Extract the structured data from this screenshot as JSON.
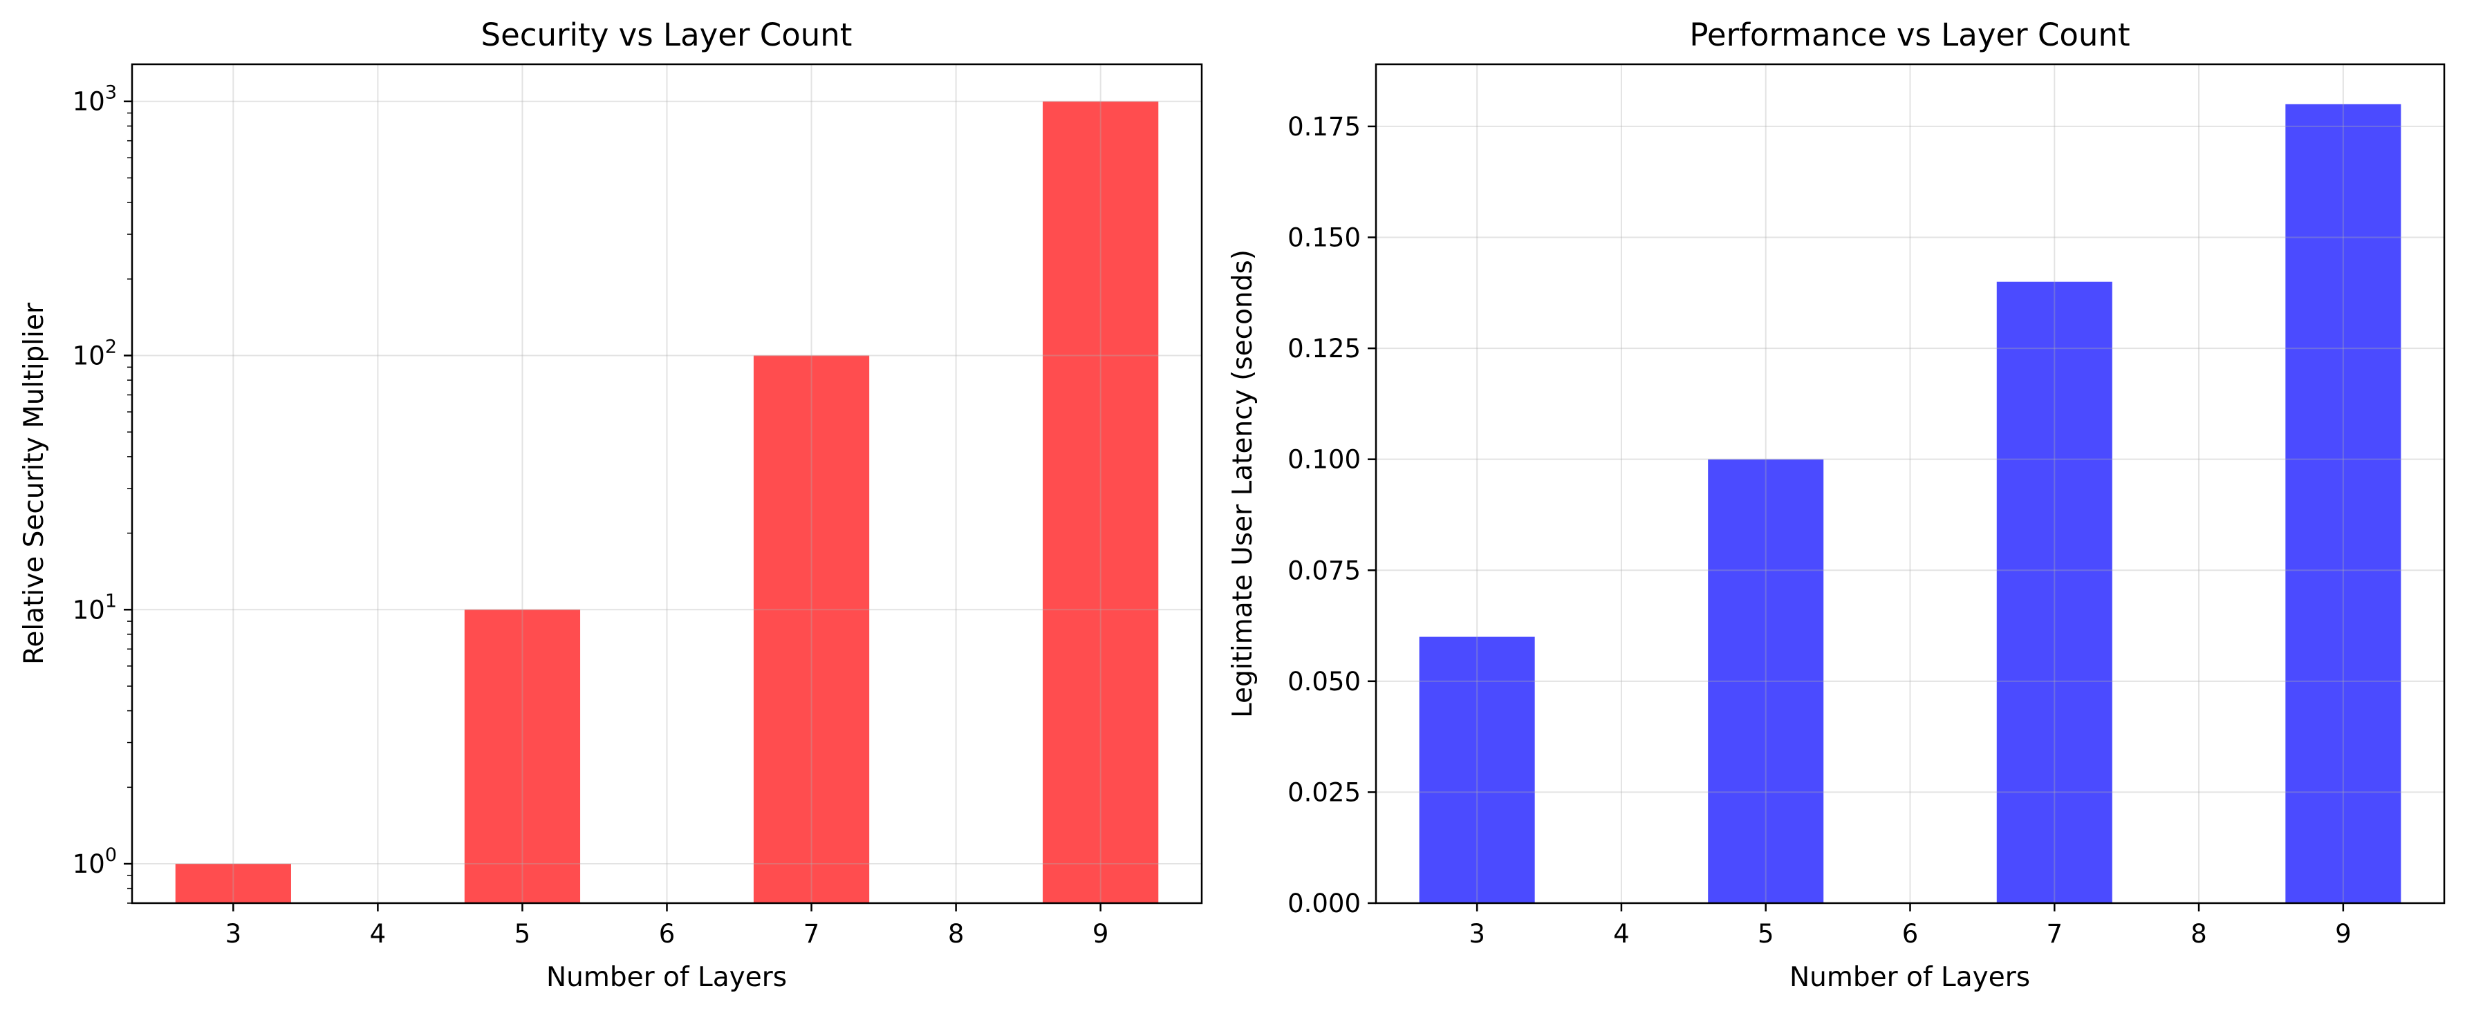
{
  "chart_data": [
    {
      "type": "bar",
      "title": "Security vs Layer Count",
      "xlabel": "Number of Layers",
      "ylabel": "Relative Security Multiplier",
      "yscale": "log",
      "xlim": [
        2.3,
        9.7
      ],
      "ylim": [
        0.7,
        1400
      ],
      "bar_width": 0.8,
      "x": [
        3,
        5,
        7,
        9
      ],
      "values": [
        1,
        10,
        100,
        1000
      ],
      "xticks": [
        "3",
        "4",
        "5",
        "6",
        "7",
        "8",
        "9"
      ],
      "yticks": [
        {
          "value": 1,
          "base": "10",
          "exp": "0"
        },
        {
          "value": 10,
          "base": "10",
          "exp": "1"
        },
        {
          "value": 100,
          "base": "10",
          "exp": "2"
        },
        {
          "value": 1000,
          "base": "10",
          "exp": "3"
        }
      ],
      "color": "#ff4d4f",
      "grid": true
    },
    {
      "type": "bar",
      "title": "Performance vs Layer Count",
      "xlabel": "Number of Layers",
      "ylabel": "Legitimate User Latency (seconds)",
      "yscale": "linear",
      "xlim": [
        2.3,
        9.7
      ],
      "ylim": [
        0,
        0.189
      ],
      "bar_width": 0.8,
      "x": [
        3,
        5,
        7,
        9
      ],
      "values": [
        0.06,
        0.1,
        0.14,
        0.18
      ],
      "xticks": [
        "3",
        "4",
        "5",
        "6",
        "7",
        "8",
        "9"
      ],
      "yticks": [
        {
          "value": 0,
          "label": "0.000"
        },
        {
          "value": 0.025,
          "label": "0.025"
        },
        {
          "value": 0.05,
          "label": "0.050"
        },
        {
          "value": 0.075,
          "label": "0.075"
        },
        {
          "value": 0.1,
          "label": "0.100"
        },
        {
          "value": 0.125,
          "label": "0.125"
        },
        {
          "value": 0.15,
          "label": "0.150"
        },
        {
          "value": 0.175,
          "label": "0.175"
        }
      ],
      "color": "#4b4bff",
      "grid": true
    }
  ]
}
